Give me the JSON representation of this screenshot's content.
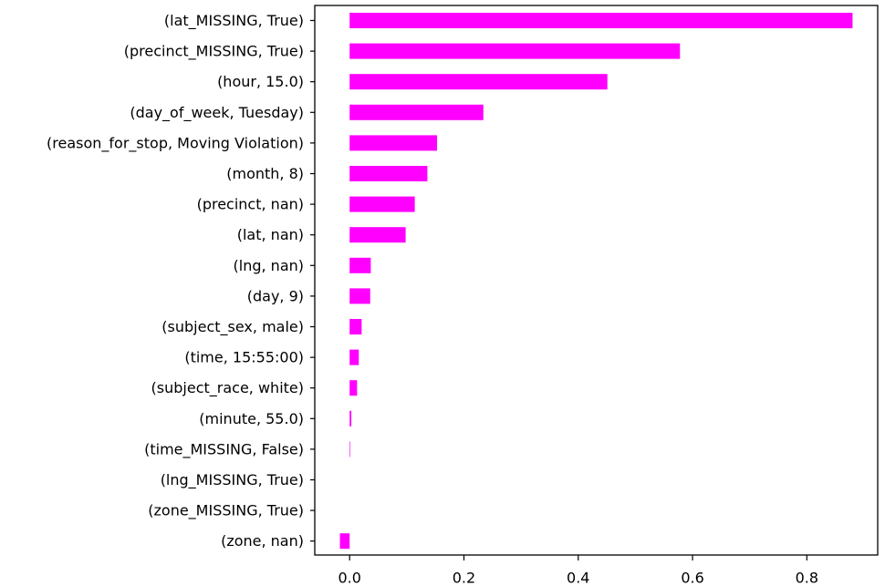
{
  "chart_data": {
    "type": "bar",
    "orientation": "horizontal",
    "categories": [
      "(lat_MISSING, True)",
      "(precinct_MISSING, True)",
      "(hour, 15.0)",
      "(day_of_week, Tuesday)",
      "(reason_for_stop, Moving Violation)",
      "(month, 8)",
      "(precinct, nan)",
      "(lat, nan)",
      "(lng, nan)",
      "(day, 9)",
      "(subject_sex, male)",
      "(time, 15:55:00)",
      "(subject_race, white)",
      "(minute, 55.0)",
      "(time_MISSING, False)",
      "(lng_MISSING, True)",
      "(zone_MISSING, True)",
      "(zone, nan)"
    ],
    "values": [
      0.88,
      0.578,
      0.451,
      0.234,
      0.153,
      0.136,
      0.114,
      0.098,
      0.037,
      0.036,
      0.021,
      0.016,
      0.013,
      0.003,
      0.001,
      0.0,
      0.0,
      -0.017
    ],
    "xticks": [
      0.0,
      0.2,
      0.4,
      0.6,
      0.8
    ],
    "xtick_labels": [
      "0.0",
      "0.2",
      "0.4",
      "0.6",
      "0.8"
    ],
    "xlim": [
      -0.061,
      0.924
    ],
    "bar_color": "#ff00ff",
    "grid": false,
    "title": "",
    "xlabel": "",
    "ylabel": ""
  }
}
